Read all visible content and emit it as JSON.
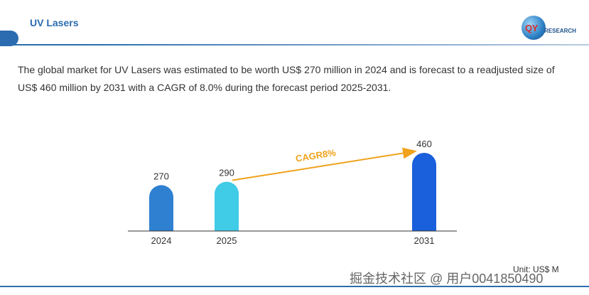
{
  "header": {
    "title": "UV Lasers"
  },
  "logo": {
    "mark": "QY",
    "text": "RESEARCH"
  },
  "description": "The global market for UV Lasers was estimated to be worth US$ 270 million in 2024 and is forecast to a readjusted size of US$ 460 million by 2031 with a CAGR of 8.0% during the forecast period 2025-2031.",
  "chart_data": {
    "type": "bar",
    "categories": [
      "2024",
      "2025",
      "2031"
    ],
    "values": [
      270,
      290,
      460
    ],
    "data_labels": [
      "270",
      "290",
      "460"
    ],
    "colors": [
      "#2F80D1",
      "#40CBE6",
      "#1A5FDB"
    ],
    "annotation": {
      "text": "CAGR8%",
      "from": "2025",
      "to": "2031",
      "color": "#F0A21C"
    },
    "ylim": [
      0,
      460
    ],
    "grid": false,
    "title": "",
    "xlabel": "",
    "ylabel": ""
  },
  "unit_label": "Unit: US$ M",
  "watermark": "掘金技术社区 @ 用户0041850490"
}
